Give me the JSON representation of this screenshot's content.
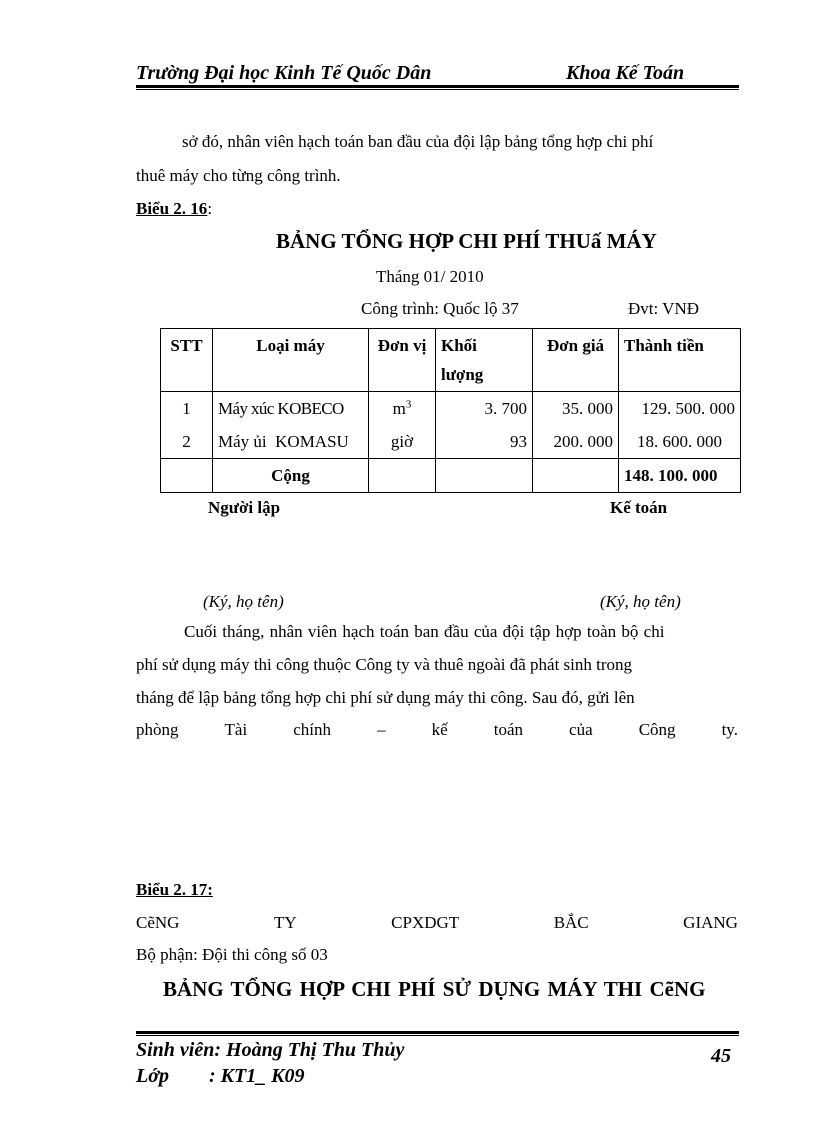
{
  "header": {
    "left": "Trường Đại học Kinh Tế Quốc Dân",
    "right": "Khoa Kế Toán"
  },
  "para1": {
    "line1": "sở đó, nhân viên hạch toán ban đầu của đội lập bảng tổng hợp chi phí",
    "line2": "thuê máy cho từng công trình."
  },
  "bieu16": {
    "label": "Biểu 2. 16",
    "colon": ":",
    "title": "BẢNG TỔNG HỢP CHI PHÍ THUấ MÁY",
    "month": "Tháng 01/ 2010",
    "project": "Công trình: Quốc lộ 37",
    "unit": "Đvt: VNĐ"
  },
  "table": {
    "headers": [
      "STT",
      "Loại máy",
      "Đơn vị",
      "Khối lượng",
      "Đơn giá",
      "Thành tiền"
    ],
    "rows": [
      {
        "stt": "1",
        "name": "Máy xúc KOBECO",
        "unit": "m",
        "unit_sup": "3",
        "qty": "3. 700",
        "price": "35. 000",
        "amount": "129. 500. 000"
      },
      {
        "stt": "2",
        "name": "Máy ủi  KOMASU",
        "unit": "giờ",
        "unit_sup": "",
        "qty": "93",
        "price": "200. 000",
        "amount": "18. 600. 000"
      }
    ],
    "total_label": "Cộng",
    "total_amount": "148. 100. 000"
  },
  "signatures": {
    "left_title": "Người lập",
    "right_title": "Kế toán",
    "left_note": "(Ký, họ tên)",
    "right_note": "(Ký, họ tên)"
  },
  "para2": {
    "line1": "Cuối tháng, nhân viên hạch toán ban đầu của đội tập hợp toàn bộ chi",
    "line2": "phí sử dụng máy thi công thuộc Công ty và thuê ngoài đã phát sinh trong",
    "line3": "tháng để lập bảng tổng hợp chi phí sử dụng máy thi công. Sau đó, gửi lên",
    "line4_words": [
      "phòng",
      "Tài",
      "chính",
      "–",
      "kế",
      "toán",
      "của",
      "Công",
      "ty."
    ]
  },
  "bieu17": {
    "label": "Biểu 2. 17:",
    "company_words": [
      "CẽNG",
      "TY",
      "CPXDGT",
      "BẮC",
      "GIANG"
    ],
    "department": "Bộ phận: Đội thi công số 03",
    "title": "BẢNG TỔNG HỢP CHI PHÍ SỬ DỤNG MÁY THI CẽNG"
  },
  "footer": {
    "student": "Sinh viên: Hoàng Thị Thu Thủy",
    "class": "Lớp        : KT1_ K09",
    "page": "45"
  }
}
